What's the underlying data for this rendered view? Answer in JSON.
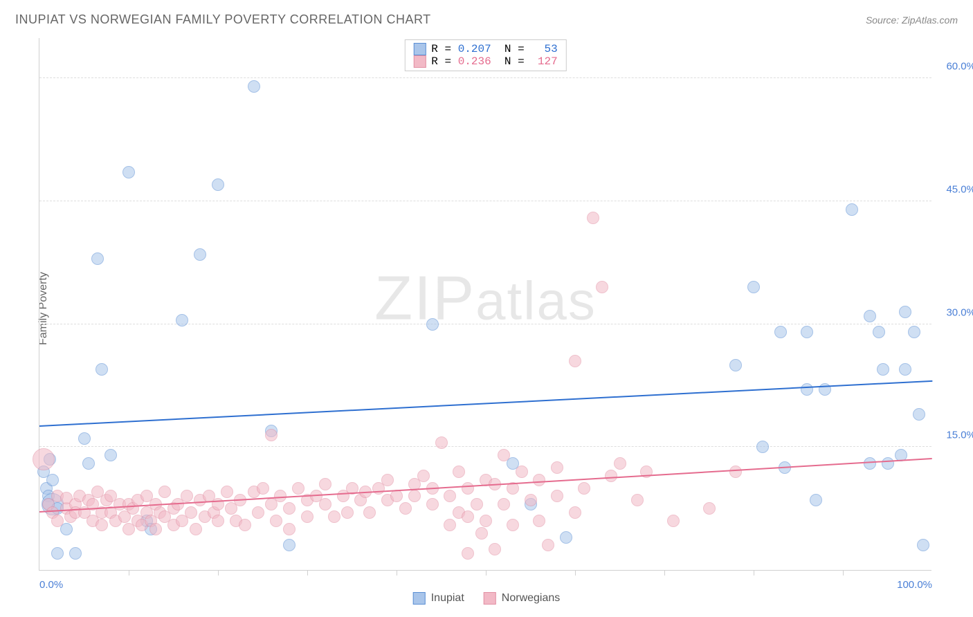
{
  "header": {
    "title": "INUPIAT VS NORWEGIAN FAMILY POVERTY CORRELATION CHART",
    "source": "Source: ZipAtlas.com"
  },
  "chart": {
    "type": "scatter",
    "ylabel": "Family Poverty",
    "xlim": [
      0,
      100
    ],
    "ylim": [
      0,
      65
    ],
    "yticks": [
      {
        "value": 15,
        "label": "15.0%"
      },
      {
        "value": 30,
        "label": "30.0%"
      },
      {
        "value": 45,
        "label": "45.0%"
      },
      {
        "value": 60,
        "label": "60.0%"
      }
    ],
    "xticks_major": [
      0,
      100
    ],
    "xticks_minor": [
      10,
      20,
      30,
      40,
      50,
      60,
      70,
      80,
      90
    ],
    "xtick_labels": {
      "0": "0.0%",
      "100": "100.0%"
    },
    "xlabel_color": "#4a7fd6",
    "ylabel_color_series1": "#4a7fd6",
    "background_color": "#ffffff",
    "grid_color": "#dddddd",
    "marker_radius": 9,
    "marker_radius_large": 16,
    "series": [
      {
        "name": "Inupiat",
        "fill_color": "#a9c5ea",
        "stroke_color": "#5b8fd4",
        "fill_opacity": 0.55,
        "R": "0.207",
        "N": "53",
        "trend": {
          "y_at_x0": 17.5,
          "y_at_x100": 23.0,
          "color": "#2e6fd0",
          "width": 2
        },
        "points": [
          {
            "x": 0.5,
            "y": 12
          },
          {
            "x": 0.8,
            "y": 10
          },
          {
            "x": 1,
            "y": 9
          },
          {
            "x": 1,
            "y": 8
          },
          {
            "x": 1.2,
            "y": 13.5
          },
          {
            "x": 1.5,
            "y": 11
          },
          {
            "x": 1.5,
            "y": 8,
            "large": true
          },
          {
            "x": 2,
            "y": 2
          },
          {
            "x": 2,
            "y": 7.5
          },
          {
            "x": 3,
            "y": 5
          },
          {
            "x": 4,
            "y": 2
          },
          {
            "x": 5,
            "y": 16
          },
          {
            "x": 5.5,
            "y": 13
          },
          {
            "x": 6.5,
            "y": 38
          },
          {
            "x": 7,
            "y": 24.5
          },
          {
            "x": 8,
            "y": 14
          },
          {
            "x": 10,
            "y": 48.5
          },
          {
            "x": 12,
            "y": 6
          },
          {
            "x": 12.5,
            "y": 5
          },
          {
            "x": 16,
            "y": 30.5
          },
          {
            "x": 18,
            "y": 38.5
          },
          {
            "x": 20,
            "y": 47
          },
          {
            "x": 24,
            "y": 59
          },
          {
            "x": 26,
            "y": 17
          },
          {
            "x": 28,
            "y": 3
          },
          {
            "x": 44,
            "y": 30
          },
          {
            "x": 53,
            "y": 13
          },
          {
            "x": 55,
            "y": 8
          },
          {
            "x": 59,
            "y": 4
          },
          {
            "x": 78,
            "y": 25
          },
          {
            "x": 80,
            "y": 34.5
          },
          {
            "x": 81,
            "y": 15
          },
          {
            "x": 83,
            "y": 29
          },
          {
            "x": 83.5,
            "y": 12.5
          },
          {
            "x": 86,
            "y": 22
          },
          {
            "x": 86,
            "y": 29
          },
          {
            "x": 87,
            "y": 8.5
          },
          {
            "x": 88,
            "y": 22
          },
          {
            "x": 91,
            "y": 44
          },
          {
            "x": 93,
            "y": 31
          },
          {
            "x": 93,
            "y": 13
          },
          {
            "x": 94,
            "y": 29
          },
          {
            "x": 94.5,
            "y": 24.5
          },
          {
            "x": 95,
            "y": 13
          },
          {
            "x": 96.5,
            "y": 14
          },
          {
            "x": 97,
            "y": 24.5
          },
          {
            "x": 97,
            "y": 31.5
          },
          {
            "x": 98,
            "y": 29
          },
          {
            "x": 98.5,
            "y": 19
          },
          {
            "x": 99,
            "y": 3
          }
        ]
      },
      {
        "name": "Norwegians",
        "fill_color": "#f2b9c6",
        "stroke_color": "#e290a4",
        "fill_opacity": 0.55,
        "R": "0.236",
        "N": "127",
        "trend": {
          "y_at_x0": 7.0,
          "y_at_x100": 13.5,
          "color": "#e56b8e",
          "width": 2
        },
        "points": [
          {
            "x": 0.5,
            "y": 13.5,
            "large": true
          },
          {
            "x": 1,
            "y": 8
          },
          {
            "x": 1.5,
            "y": 7
          },
          {
            "x": 2,
            "y": 9
          },
          {
            "x": 2,
            "y": 6
          },
          {
            "x": 3,
            "y": 7.5
          },
          {
            "x": 3,
            "y": 8.8
          },
          {
            "x": 3.5,
            "y": 6.5
          },
          {
            "x": 4,
            "y": 8
          },
          {
            "x": 4,
            "y": 7
          },
          {
            "x": 4.5,
            "y": 9
          },
          {
            "x": 5,
            "y": 7
          },
          {
            "x": 5.5,
            "y": 8.5
          },
          {
            "x": 6,
            "y": 6
          },
          {
            "x": 6,
            "y": 8
          },
          {
            "x": 6.5,
            "y": 9.5
          },
          {
            "x": 7,
            "y": 7
          },
          {
            "x": 7,
            "y": 5.5
          },
          {
            "x": 7.5,
            "y": 8.5
          },
          {
            "x": 8,
            "y": 7
          },
          {
            "x": 8,
            "y": 9
          },
          {
            "x": 8.5,
            "y": 6
          },
          {
            "x": 9,
            "y": 8
          },
          {
            "x": 9.5,
            "y": 6.5
          },
          {
            "x": 10,
            "y": 8
          },
          {
            "x": 10,
            "y": 5
          },
          {
            "x": 10.5,
            "y": 7.5
          },
          {
            "x": 11,
            "y": 6
          },
          {
            "x": 11,
            "y": 8.5
          },
          {
            "x": 11.5,
            "y": 5.5
          },
          {
            "x": 12,
            "y": 7
          },
          {
            "x": 12,
            "y": 9
          },
          {
            "x": 12.5,
            "y": 6
          },
          {
            "x": 13,
            "y": 8
          },
          {
            "x": 13,
            "y": 5
          },
          {
            "x": 13.5,
            "y": 7
          },
          {
            "x": 14,
            "y": 6.5
          },
          {
            "x": 14,
            "y": 9.5
          },
          {
            "x": 15,
            "y": 7.5
          },
          {
            "x": 15,
            "y": 5.5
          },
          {
            "x": 15.5,
            "y": 8
          },
          {
            "x": 16,
            "y": 6
          },
          {
            "x": 16.5,
            "y": 9
          },
          {
            "x": 17,
            "y": 7
          },
          {
            "x": 17.5,
            "y": 5
          },
          {
            "x": 18,
            "y": 8.5
          },
          {
            "x": 18.5,
            "y": 6.5
          },
          {
            "x": 19,
            "y": 9
          },
          {
            "x": 19.5,
            "y": 7
          },
          {
            "x": 20,
            "y": 8
          },
          {
            "x": 20,
            "y": 6
          },
          {
            "x": 21,
            "y": 9.5
          },
          {
            "x": 21.5,
            "y": 7.5
          },
          {
            "x": 22,
            "y": 6
          },
          {
            "x": 22.5,
            "y": 8.5
          },
          {
            "x": 23,
            "y": 5.5
          },
          {
            "x": 24,
            "y": 9.5
          },
          {
            "x": 24.5,
            "y": 7
          },
          {
            "x": 25,
            "y": 10
          },
          {
            "x": 26,
            "y": 8
          },
          {
            "x": 26,
            "y": 16.5
          },
          {
            "x": 26.5,
            "y": 6
          },
          {
            "x": 27,
            "y": 9
          },
          {
            "x": 28,
            "y": 7.5
          },
          {
            "x": 28,
            "y": 5
          },
          {
            "x": 29,
            "y": 10
          },
          {
            "x": 30,
            "y": 8.5
          },
          {
            "x": 30,
            "y": 6.5
          },
          {
            "x": 31,
            "y": 9
          },
          {
            "x": 32,
            "y": 8
          },
          {
            "x": 32,
            "y": 10.5
          },
          {
            "x": 33,
            "y": 6.5
          },
          {
            "x": 34,
            "y": 9
          },
          {
            "x": 34.5,
            "y": 7
          },
          {
            "x": 35,
            "y": 10
          },
          {
            "x": 36,
            "y": 8.5
          },
          {
            "x": 36.5,
            "y": 9.5
          },
          {
            "x": 37,
            "y": 7
          },
          {
            "x": 38,
            "y": 10
          },
          {
            "x": 39,
            "y": 8.5
          },
          {
            "x": 39,
            "y": 11
          },
          {
            "x": 40,
            "y": 9
          },
          {
            "x": 41,
            "y": 7.5
          },
          {
            "x": 42,
            "y": 10.5
          },
          {
            "x": 42,
            "y": 9
          },
          {
            "x": 43,
            "y": 11.5
          },
          {
            "x": 44,
            "y": 8
          },
          {
            "x": 44,
            "y": 10
          },
          {
            "x": 45,
            "y": 15.5
          },
          {
            "x": 46,
            "y": 5.5
          },
          {
            "x": 46,
            "y": 9
          },
          {
            "x": 47,
            "y": 7
          },
          {
            "x": 47,
            "y": 12
          },
          {
            "x": 48,
            "y": 6.5
          },
          {
            "x": 48,
            "y": 10
          },
          {
            "x": 48,
            "y": 2
          },
          {
            "x": 49,
            "y": 8
          },
          {
            "x": 49.5,
            "y": 4.5
          },
          {
            "x": 50,
            "y": 11
          },
          {
            "x": 50,
            "y": 6
          },
          {
            "x": 51,
            "y": 10.5
          },
          {
            "x": 51,
            "y": 2.5
          },
          {
            "x": 52,
            "y": 8
          },
          {
            "x": 52,
            "y": 14
          },
          {
            "x": 53,
            "y": 5.5
          },
          {
            "x": 53,
            "y": 10
          },
          {
            "x": 54,
            "y": 12
          },
          {
            "x": 55,
            "y": 8.5
          },
          {
            "x": 56,
            "y": 6
          },
          {
            "x": 56,
            "y": 11
          },
          {
            "x": 57,
            "y": 3
          },
          {
            "x": 58,
            "y": 12.5
          },
          {
            "x": 58,
            "y": 9
          },
          {
            "x": 60,
            "y": 25.5
          },
          {
            "x": 60,
            "y": 7
          },
          {
            "x": 61,
            "y": 10
          },
          {
            "x": 62,
            "y": 43
          },
          {
            "x": 63,
            "y": 34.5
          },
          {
            "x": 64,
            "y": 11.5
          },
          {
            "x": 65,
            "y": 13
          },
          {
            "x": 67,
            "y": 8.5
          },
          {
            "x": 68,
            "y": 12
          },
          {
            "x": 71,
            "y": 6
          },
          {
            "x": 75,
            "y": 7.5
          },
          {
            "x": 78,
            "y": 12
          }
        ]
      }
    ],
    "legend_bottom": [
      {
        "label": "Inupiat",
        "fill": "#a9c5ea",
        "stroke": "#5b8fd4"
      },
      {
        "label": "Norwegians",
        "fill": "#f2b9c6",
        "stroke": "#e290a4"
      }
    ],
    "watermark": {
      "text1": "ZIP",
      "text2": "atlas"
    }
  }
}
